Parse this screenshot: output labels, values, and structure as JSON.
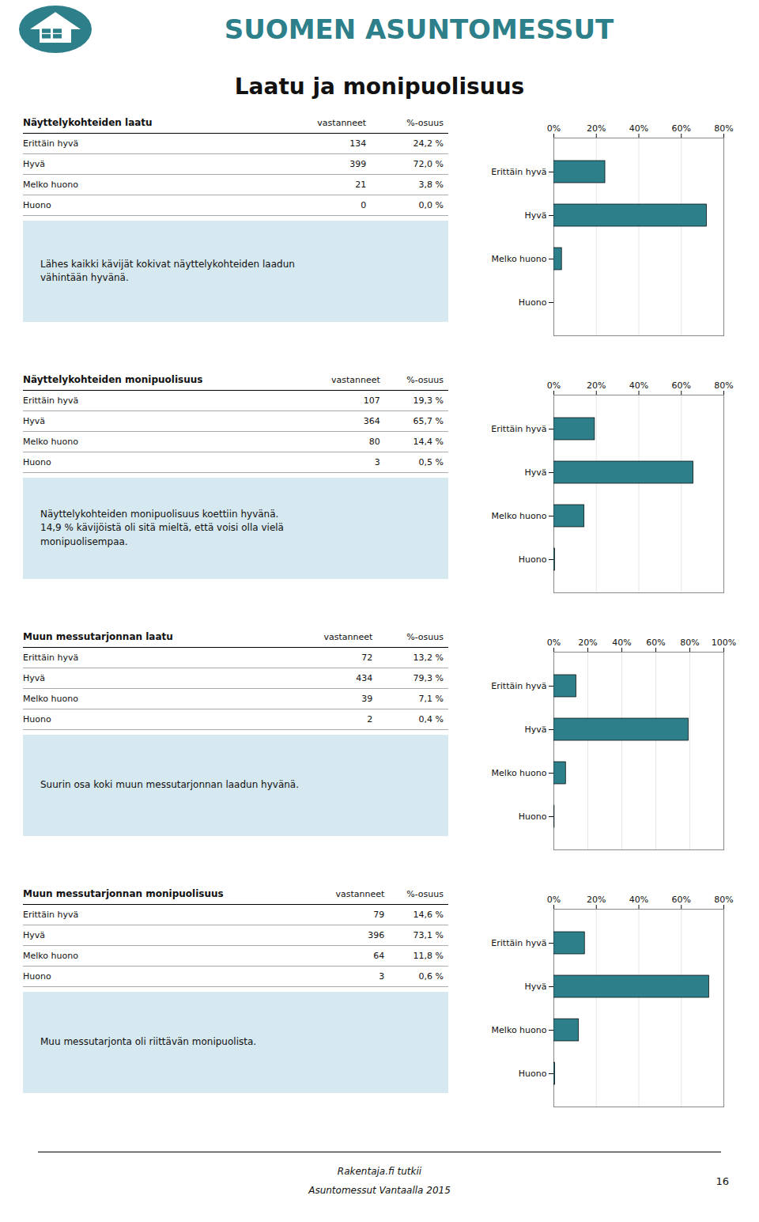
{
  "header": "SUOMEN ASUNTOMESSUT",
  "title": "Laatu ja monipuolisuus",
  "footer": [
    "Rakentaja.fi tutkii",
    "Asuntomessut Vantaalla 2015"
  ],
  "page_number": "16",
  "chart_data": [
    {
      "type": "bar",
      "orientation": "horizontal",
      "title": "Näyttelykohteiden laatu",
      "columns": [
        "vastanneet",
        "%-osuus"
      ],
      "categories": [
        "Erittäin hyvä",
        "Hyvä",
        "Melko huono",
        "Huono"
      ],
      "counts": [
        134,
        399,
        21,
        0
      ],
      "values": [
        24.2,
        72.0,
        3.8,
        0.0
      ],
      "value_labels": [
        "24,2 %",
        "72,0 %",
        "3,8 %",
        "0,0 %"
      ],
      "color": "#2d7f8a",
      "xlim": [
        0,
        80
      ],
      "xticks": [
        {
          "value": 0,
          "label": "0%"
        },
        {
          "value": 20,
          "label": "20%"
        },
        {
          "value": 40,
          "label": "40%"
        },
        {
          "value": 60,
          "label": "60%"
        },
        {
          "value": 80,
          "label": "80%"
        }
      ],
      "grid": true,
      "annotations": [
        "Lähes kaikki kävijät kokivat näyttelykohteiden laadun\nvähintään hyvänä."
      ]
    },
    {
      "type": "bar",
      "orientation": "horizontal",
      "title": "Näyttelykohteiden monipuolisuus",
      "columns": [
        "vastanneet",
        "%-osuus"
      ],
      "categories": [
        "Erittäin hyvä",
        "Hyvä",
        "Melko huono",
        "Huono"
      ],
      "counts": [
        107,
        364,
        80,
        3
      ],
      "values": [
        19.3,
        65.7,
        14.4,
        0.5
      ],
      "value_labels": [
        "19,3 %",
        "65,7 %",
        "14,4 %",
        "0,5 %"
      ],
      "color": "#2d7f8a",
      "xlim": [
        0,
        80
      ],
      "xticks": [
        {
          "value": 0,
          "label": "0%"
        },
        {
          "value": 20,
          "label": "20%"
        },
        {
          "value": 40,
          "label": "40%"
        },
        {
          "value": 60,
          "label": "60%"
        },
        {
          "value": 80,
          "label": "80%"
        }
      ],
      "grid": true,
      "annotations": [
        "Näyttelykohteiden monipuolisuus koettiin hyvänä.\n14,9 % kävijöistä oli sitä mieltä, että voisi olla vielä\nmonipuolisempaa."
      ]
    },
    {
      "type": "bar",
      "orientation": "horizontal",
      "title": "Muun messutarjonnan laatu",
      "columns": [
        "vastanneet",
        "%-osuus"
      ],
      "categories": [
        "Erittäin hyvä",
        "Hyvä",
        "Melko huono",
        "Huono"
      ],
      "counts": [
        72,
        434,
        39,
        2
      ],
      "values": [
        13.2,
        79.3,
        7.1,
        0.4
      ],
      "value_labels": [
        "13,2 %",
        "79,3 %",
        "7,1 %",
        "0,4 %"
      ],
      "color": "#2d7f8a",
      "xlim": [
        0,
        100
      ],
      "xticks": [
        {
          "value": 0,
          "label": "0%"
        },
        {
          "value": 20,
          "label": "20%"
        },
        {
          "value": 40,
          "label": "40%"
        },
        {
          "value": 60,
          "label": "60%"
        },
        {
          "value": 80,
          "label": "80%"
        },
        {
          "value": 100,
          "label": "100%"
        }
      ],
      "grid": true,
      "annotations": [
        "Suurin osa koki muun messutarjonnan laadun hyvänä."
      ]
    },
    {
      "type": "bar",
      "orientation": "horizontal",
      "title": "Muun messutarjonnan monipuolisuus",
      "columns": [
        "vastanneet",
        "%-osuus"
      ],
      "categories": [
        "Erittäin hyvä",
        "Hyvä",
        "Melko huono",
        "Huono"
      ],
      "counts": [
        79,
        396,
        64,
        3
      ],
      "values": [
        14.6,
        73.1,
        11.8,
        0.6
      ],
      "value_labels": [
        "14,6 %",
        "73,1 %",
        "11,8 %",
        "0,6 %"
      ],
      "color": "#2d7f8a",
      "xlim": [
        0,
        80
      ],
      "xticks": [
        {
          "value": 0,
          "label": "0%"
        },
        {
          "value": 20,
          "label": "20%"
        },
        {
          "value": 40,
          "label": "40%"
        },
        {
          "value": 60,
          "label": "60%"
        },
        {
          "value": 80,
          "label": "80%"
        }
      ],
      "grid": true,
      "annotations": [
        "Muu messutarjonta oli riittävän monipuolista."
      ]
    }
  ]
}
